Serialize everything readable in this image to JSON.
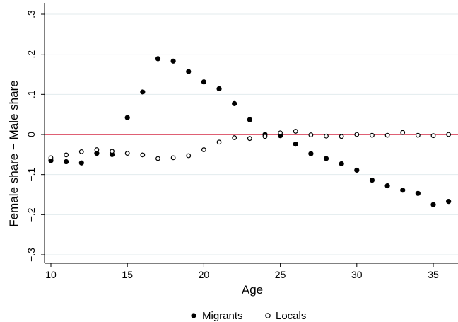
{
  "chart_data": {
    "type": "scatter",
    "xlabel": "Age",
    "ylabel": "Female share − Male share",
    "xlim": [
      10,
      36
    ],
    "ylim": [
      -0.3,
      0.3
    ],
    "x_ticks": [
      10,
      15,
      20,
      25,
      30,
      35
    ],
    "x_tick_labels": [
      "10",
      "15",
      "20",
      "25",
      "30",
      "35"
    ],
    "y_ticks": [
      -0.3,
      -0.2,
      -0.1,
      0,
      0.1,
      0.2,
      0.3
    ],
    "y_tick_labels": [
      "−.3",
      "−.2",
      "−.1",
      "0",
      ".1",
      ".2",
      ".3"
    ],
    "grid": true,
    "reference_line": {
      "y": 0,
      "color": "#cc0022"
    },
    "legend_position": "bottom",
    "series": [
      {
        "name": "Migrants",
        "marker": "filled-circle",
        "color": "#000000",
        "x": [
          10,
          11,
          12,
          13,
          14,
          15,
          16,
          17,
          18,
          19,
          20,
          21,
          22,
          23,
          24,
          25,
          26,
          27,
          28,
          29,
          30,
          31,
          32,
          33,
          34,
          35,
          36
        ],
        "y": [
          -0.065,
          -0.068,
          -0.071,
          -0.047,
          -0.05,
          0.042,
          0.106,
          0.189,
          0.183,
          0.157,
          0.131,
          0.114,
          0.077,
          0.037,
          0.0,
          -0.003,
          -0.024,
          -0.048,
          -0.06,
          -0.073,
          -0.089,
          -0.114,
          -0.128,
          -0.139,
          -0.147,
          -0.175,
          -0.167
        ]
      },
      {
        "name": "Locals",
        "marker": "hollow-circle",
        "color": "#000000",
        "x": [
          10,
          11,
          12,
          13,
          14,
          15,
          16,
          17,
          18,
          19,
          20,
          21,
          22,
          23,
          24,
          25,
          26,
          27,
          28,
          29,
          30,
          31,
          32,
          33,
          34,
          35,
          36
        ],
        "y": [
          -0.058,
          -0.051,
          -0.043,
          -0.038,
          -0.042,
          -0.047,
          -0.051,
          -0.06,
          -0.058,
          -0.053,
          -0.038,
          -0.019,
          -0.008,
          -0.01,
          -0.005,
          0.004,
          0.008,
          -0.001,
          -0.004,
          -0.005,
          0.0,
          -0.002,
          -0.002,
          0.005,
          -0.002,
          -0.003,
          0.0
        ]
      }
    ]
  }
}
